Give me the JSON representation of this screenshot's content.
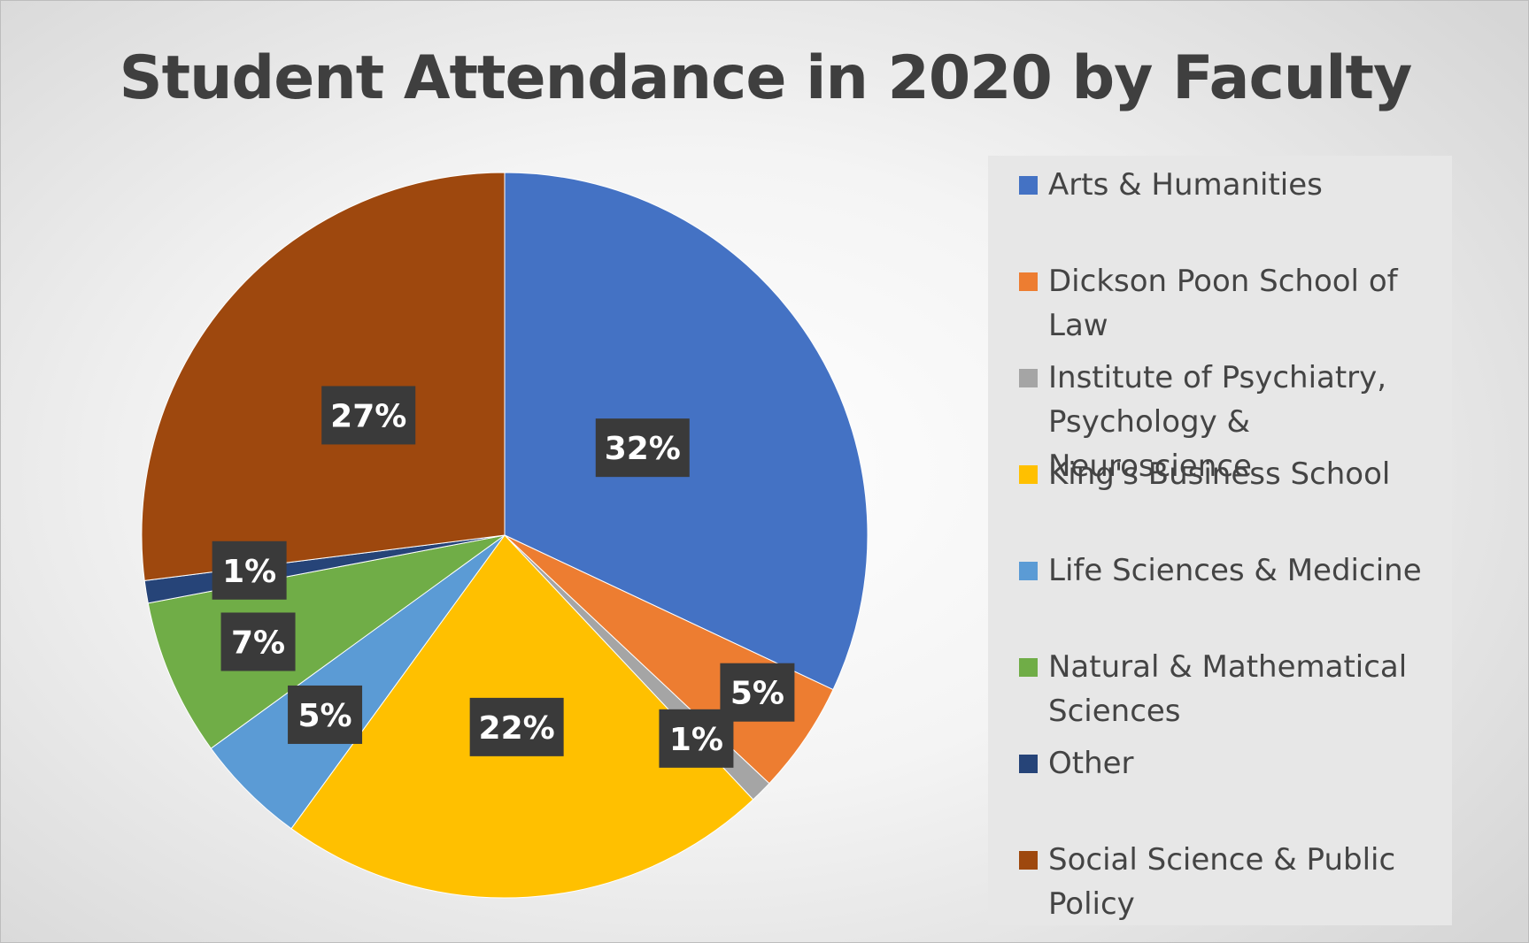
{
  "chart_data": {
    "type": "pie",
    "title": "Student Attendance in 2020 by Faculty",
    "legend_position": "right",
    "slices": [
      {
        "label": "Arts & Humanities",
        "value": 32,
        "data_label": "32%",
        "color": "#4472C4"
      },
      {
        "label": "Dickson Poon School of Law",
        "value": 5,
        "data_label": "5%",
        "color": "#ED7D31"
      },
      {
        "label": "Institute of Psychiatry,\nPsychology & Neuroscience",
        "value": 1,
        "data_label": "1%",
        "color": "#A5A5A5"
      },
      {
        "label": "King's Business School",
        "value": 22,
        "data_label": "22%",
        "color": "#FFC000"
      },
      {
        "label": "Life Sciences & Medicine",
        "value": 5,
        "data_label": "5%",
        "color": "#5B9BD5"
      },
      {
        "label": "Natural & Mathematical\nSciences",
        "value": 7,
        "data_label": "7%",
        "color": "#70AD47"
      },
      {
        "label": "Other",
        "value": 1,
        "data_label": "1%",
        "color": "#264478"
      },
      {
        "label": "Social Science & Public Policy",
        "value": 27,
        "data_label": "27%",
        "color": "#9E480E"
      }
    ]
  }
}
